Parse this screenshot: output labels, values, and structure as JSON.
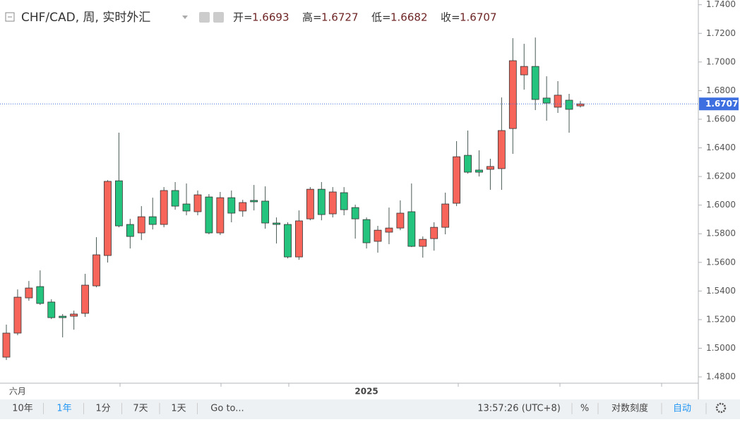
{
  "chart_data": {
    "type": "candlestick",
    "title": "CHF/CAD, 周, 实时外汇",
    "legend": [
      {
        "label": "开=",
        "value": 1.6693
      },
      {
        "label": "高=",
        "value": 1.6727
      },
      {
        "label": "低=",
        "value": 1.6682
      },
      {
        "label": "收=",
        "value": 1.6707
      }
    ],
    "categories": [
      null,
      "六月",
      null,
      null,
      null,
      null,
      null,
      null,
      null,
      null,
      null,
      null,
      null,
      null,
      null,
      null,
      null,
      null,
      null,
      null,
      null,
      null,
      null,
      null,
      null,
      null,
      null,
      null,
      null,
      null,
      null,
      null,
      "2025",
      null,
      null,
      null,
      null,
      null,
      null,
      null,
      null,
      null,
      null,
      null,
      null,
      null,
      null,
      null,
      null,
      null,
      null,
      null
    ],
    "open": [
      1.4938,
      1.5106,
      1.5352,
      1.5431,
      1.5323,
      1.5224,
      1.5224,
      1.5244,
      1.5436,
      1.5648,
      1.617,
      1.5865,
      1.5806,
      1.5919,
      1.5865,
      1.6102,
      1.6008,
      1.5954,
      1.6057,
      1.5806,
      1.6052,
      1.5959,
      1.6033,
      1.6028,
      1.5875,
      1.5865,
      1.5638,
      1.5904,
      1.6111,
      1.5939,
      1.6087,
      1.5983,
      1.5899,
      1.5747,
      1.5811,
      1.584,
      1.5954,
      1.5712,
      1.5766,
      1.5845,
      1.6013,
      1.6348,
      1.6245,
      1.625,
      1.6255,
      1.6535,
      1.691,
      1.6969,
      1.6748,
      1.6684,
      1.6733,
      1.6693
    ],
    "high": [
      1.5165,
      1.5411,
      1.547,
      1.5544,
      1.5342,
      1.5239,
      1.5263,
      1.552,
      1.5776,
      1.6175,
      1.6506,
      1.5904,
      1.5993,
      1.6052,
      1.6126,
      1.6161,
      1.6151,
      1.6102,
      1.6077,
      1.6092,
      1.6102,
      1.6037,
      1.6141,
      1.6131,
      1.5914,
      1.588,
      1.5963,
      1.6126,
      1.6161,
      1.6126,
      1.6126,
      1.6003,
      1.5914,
      1.5855,
      1.5983,
      1.6033,
      1.6151,
      1.5781,
      1.588,
      1.6087,
      1.6447,
      1.6521,
      1.6383,
      1.6324,
      1.6752,
      1.7166,
      1.7127,
      1.7171,
      1.69,
      1.6866,
      1.6777,
      1.6727
    ],
    "low": [
      1.4918,
      1.5091,
      1.5332,
      1.5303,
      1.5204,
      1.5076,
      1.513,
      1.5219,
      1.5426,
      1.5599,
      1.5845,
      1.5697,
      1.5756,
      1.583,
      1.5845,
      1.5968,
      1.5929,
      1.5929,
      1.5796,
      1.5791,
      1.588,
      1.5919,
      1.5963,
      1.5835,
      1.5732,
      1.5628,
      1.5618,
      1.5894,
      1.5894,
      1.5914,
      1.5929,
      1.5766,
      1.5697,
      1.5668,
      1.5727,
      1.5825,
      1.5707,
      1.5633,
      1.5682,
      1.5796,
      1.5993,
      1.622,
      1.62,
      1.6107,
      1.6107,
      1.6358,
      1.6807,
      1.6664,
      1.659,
      1.6644,
      1.6506,
      1.6682
    ],
    "close": [
      1.5106,
      1.5357,
      1.5421,
      1.5313,
      1.5214,
      1.5214,
      1.5239,
      1.5441,
      1.5653,
      1.6166,
      1.5855,
      1.5781,
      1.5919,
      1.5865,
      1.6102,
      1.5993,
      1.5959,
      1.6072,
      1.5806,
      1.6052,
      1.5944,
      1.6018,
      1.6023,
      1.5875,
      1.5865,
      1.5638,
      1.589,
      1.6111,
      1.5934,
      1.6092,
      1.5968,
      1.5904,
      1.5737,
      1.5825,
      1.584,
      1.5944,
      1.5712,
      1.5761,
      1.5845,
      1.6008,
      1.6338,
      1.623,
      1.623,
      1.627,
      1.6521,
      1.7009,
      1.6969,
      1.6738,
      1.6713,
      1.6768,
      1.6669,
      1.6707
    ],
    "up_color": "#f6645a",
    "down_color": "#25c47e",
    "last_color": "#3d6fe0",
    "ylim": [
      1.4756,
      1.7433
    ],
    "yticks": [
      {
        "value": 1.48,
        "label": "1.4800"
      },
      {
        "value": 1.5,
        "label": "1.5000"
      },
      {
        "value": 1.52,
        "label": "1.5200"
      },
      {
        "value": 1.54,
        "label": "1.5400"
      },
      {
        "value": 1.56,
        "label": "1.5600"
      },
      {
        "value": 1.58,
        "label": "1.5800"
      },
      {
        "value": 1.6,
        "label": "1.6000"
      },
      {
        "value": 1.62,
        "label": "1.6200"
      },
      {
        "value": 1.64,
        "label": "1.6400"
      },
      {
        "value": 1.66,
        "label": "1.6600"
      },
      {
        "value": 1.68,
        "label": "1.6800"
      },
      {
        "value": 1.7,
        "label": "1.7000"
      },
      {
        "value": 1.72,
        "label": "1.7200"
      },
      {
        "value": 1.74,
        "label": "1.7400"
      }
    ]
  },
  "toolbar": {
    "left": [
      "10年",
      "1年",
      "1分",
      "7天",
      "1天",
      "Go to..."
    ],
    "time": "13:57:26 (UTC+8)",
    "right": [
      "%",
      "对数刻度",
      "自动"
    ]
  }
}
